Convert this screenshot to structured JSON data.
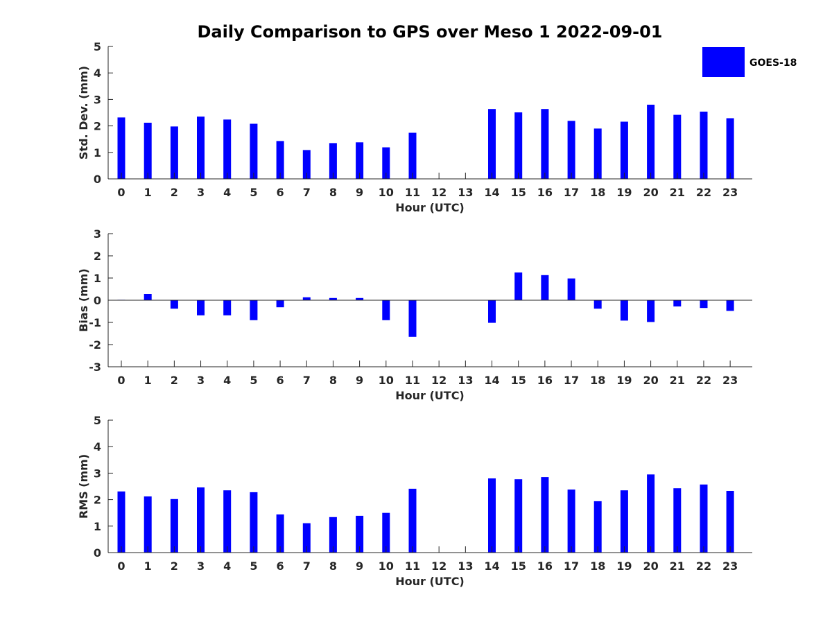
{
  "title": "Daily Comparison to GPS over Meso 1 2022-09-01",
  "legend": {
    "label": "GOES-18",
    "color": "#0000ff"
  },
  "chart_data": [
    {
      "type": "bar",
      "ylabel": "Std. Dev. (mm)",
      "xlabel": "Hour (UTC)",
      "ylim": [
        0,
        5
      ],
      "yticks": [
        0,
        1,
        2,
        3,
        4,
        5
      ],
      "categories": [
        "0",
        "1",
        "2",
        "3",
        "4",
        "5",
        "6",
        "7",
        "8",
        "9",
        "10",
        "11",
        "12",
        "13",
        "14",
        "15",
        "16",
        "17",
        "18",
        "19",
        "20",
        "21",
        "22",
        "23"
      ],
      "series": [
        {
          "name": "GOES-18",
          "values": [
            2.32,
            2.12,
            1.98,
            2.35,
            2.24,
            2.08,
            1.43,
            1.09,
            1.35,
            1.38,
            1.19,
            1.74,
            null,
            null,
            2.64,
            2.51,
            2.64,
            2.19,
            1.9,
            2.16,
            2.8,
            2.42,
            2.54,
            2.29
          ]
        }
      ]
    },
    {
      "type": "bar",
      "ylabel": "Bias (mm)",
      "xlabel": "Hour (UTC)",
      "ylim": [
        -3,
        3
      ],
      "yticks": [
        -3,
        -2,
        -1,
        0,
        1,
        2,
        3
      ],
      "categories": [
        "0",
        "1",
        "2",
        "3",
        "4",
        "5",
        "6",
        "7",
        "8",
        "9",
        "10",
        "11",
        "12",
        "13",
        "14",
        "15",
        "16",
        "17",
        "18",
        "19",
        "20",
        "21",
        "22",
        "23"
      ],
      "series": [
        {
          "name": "GOES-18",
          "values": [
            0.02,
            0.28,
            -0.38,
            -0.68,
            -0.68,
            -0.9,
            -0.32,
            0.13,
            0.1,
            0.1,
            -0.9,
            -1.65,
            null,
            null,
            -1.02,
            1.25,
            1.13,
            0.98,
            -0.38,
            -0.92,
            -0.98,
            -0.28,
            -0.35,
            -0.48
          ]
        }
      ]
    },
    {
      "type": "bar",
      "ylabel": "RMS (mm)",
      "xlabel": "Hour (UTC)",
      "ylim": [
        0,
        5
      ],
      "yticks": [
        0,
        1,
        2,
        3,
        4,
        5
      ],
      "categories": [
        "0",
        "1",
        "2",
        "3",
        "4",
        "5",
        "6",
        "7",
        "8",
        "9",
        "10",
        "11",
        "12",
        "13",
        "14",
        "15",
        "16",
        "17",
        "18",
        "19",
        "20",
        "21",
        "22",
        "23"
      ],
      "series": [
        {
          "name": "GOES-18",
          "values": [
            2.31,
            2.12,
            2.02,
            2.46,
            2.35,
            2.28,
            1.44,
            1.11,
            1.34,
            1.39,
            1.5,
            2.41,
            null,
            null,
            2.8,
            2.77,
            2.85,
            2.38,
            1.94,
            2.35,
            2.95,
            2.43,
            2.57,
            2.33
          ]
        }
      ]
    }
  ]
}
